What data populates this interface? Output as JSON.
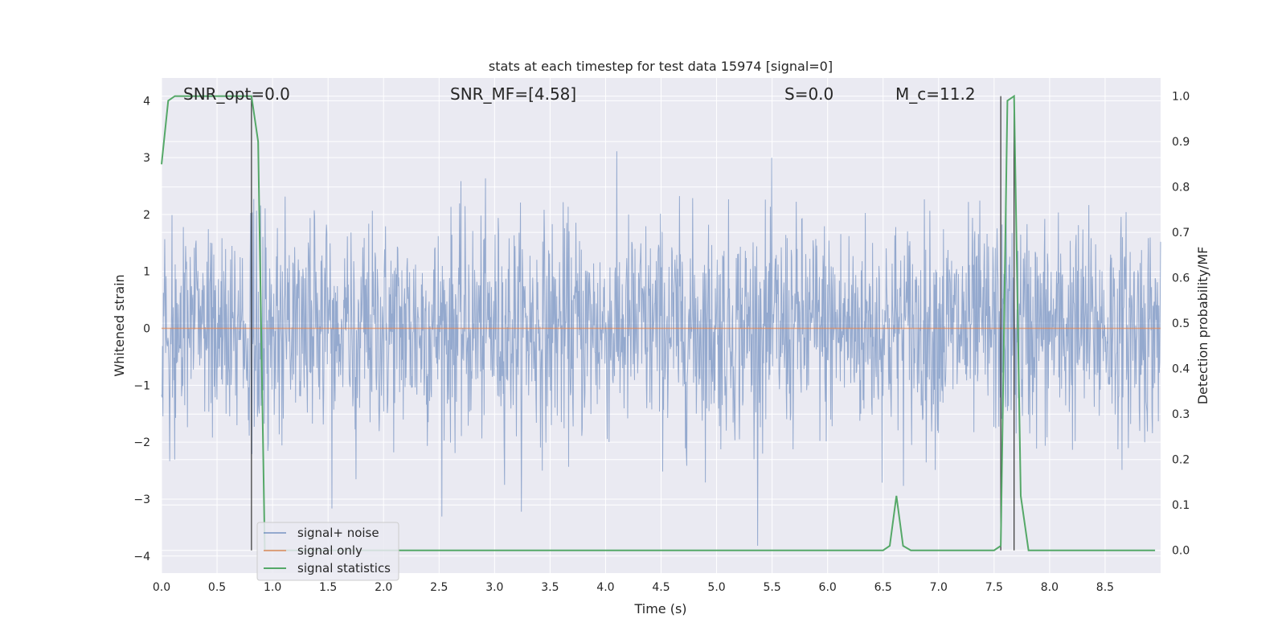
{
  "chart_data": {
    "type": "line",
    "title": "stats at each timestep for test data 15974 [signal=0]",
    "xlabel": "Time (s)",
    "ylabel_left": "Whitened strain",
    "ylabel_right": "Detection probability/MF",
    "xlim": [
      0.0,
      9.0
    ],
    "ylim_left": [
      -4.3,
      4.4
    ],
    "ylim_right": [
      -0.05,
      1.04
    ],
    "x_ticks": [
      0.0,
      0.5,
      1.0,
      1.5,
      2.0,
      2.5,
      3.0,
      3.5,
      4.0,
      4.5,
      5.0,
      5.5,
      6.0,
      6.5,
      7.0,
      7.5,
      8.0,
      8.5
    ],
    "x_tick_labels": [
      "0.0",
      "0.5",
      "1.0",
      "1.5",
      "2.0",
      "2.5",
      "3.0",
      "3.5",
      "4.0",
      "4.5",
      "5.0",
      "5.5",
      "6.0",
      "6.5",
      "7.0",
      "7.5",
      "8.0",
      "8.5"
    ],
    "y_left_ticks": [
      4,
      3,
      2,
      1,
      0,
      -1,
      -2,
      -3,
      -4
    ],
    "y_left_tick_labels": [
      "4",
      "3",
      "2",
      "1",
      "0",
      "−1",
      "−2",
      "−3",
      "−4"
    ],
    "y_right_ticks": [
      1.0,
      0.9,
      0.8,
      0.7,
      0.6,
      0.5,
      0.4,
      0.3,
      0.2,
      0.1,
      0.0
    ],
    "y_right_tick_labels": [
      "1.0",
      "0.9",
      "0.8",
      "0.7",
      "0.6",
      "0.5",
      "0.4",
      "0.3",
      "0.2",
      "0.1",
      "0.0"
    ],
    "grid": true,
    "legend_position": "lower-left",
    "annotations": [
      {
        "text": "SNR_opt=0.0",
        "x": 0.2
      },
      {
        "text": "SNR_MF=[4.58]",
        "x": 2.6
      },
      {
        "text": "S=0.0",
        "x": 5.6
      },
      {
        "text": "M_c=11.2",
        "x": 6.6
      }
    ],
    "vertical_markers": [
      0.81,
      7.56,
      7.68
    ],
    "series": [
      {
        "name": "signal+ noise",
        "axis": "left",
        "color": "#4c72b0",
        "sample_rate_hz": 2048,
        "amplitude_envelope": {
          "typical_peak": 2.5,
          "max": 4.0,
          "min": -3.9
        }
      },
      {
        "name": "signal only",
        "axis": "left",
        "color": "#dd8452",
        "x": [
          0.0,
          9.0
        ],
        "y": [
          0.0,
          0.0
        ]
      },
      {
        "name": "signal statistics",
        "axis": "right",
        "color": "#55a868",
        "x": [
          0.0,
          0.06,
          0.12,
          0.5,
          0.75,
          0.81,
          0.87,
          0.93,
          6.5,
          6.56,
          6.62,
          6.68,
          6.75,
          7.5,
          7.56,
          7.62,
          7.68,
          7.74,
          7.81,
          8.95
        ],
        "y": [
          0.85,
          0.99,
          1.0,
          1.0,
          1.0,
          1.0,
          0.9,
          0.0,
          0.0,
          0.01,
          0.12,
          0.01,
          0.0,
          0.0,
          0.01,
          0.99,
          1.0,
          0.12,
          0.0,
          0.0
        ]
      }
    ]
  },
  "legend": {
    "items": [
      {
        "label": "signal+ noise",
        "color": "#4c72b0"
      },
      {
        "label": "signal only",
        "color": "#dd8452"
      },
      {
        "label": "signal statistics",
        "color": "#55a868"
      }
    ]
  },
  "colors": {
    "plot_background": "#eaeaf2",
    "grid": "#ffffff",
    "marker_line": "#333333"
  }
}
